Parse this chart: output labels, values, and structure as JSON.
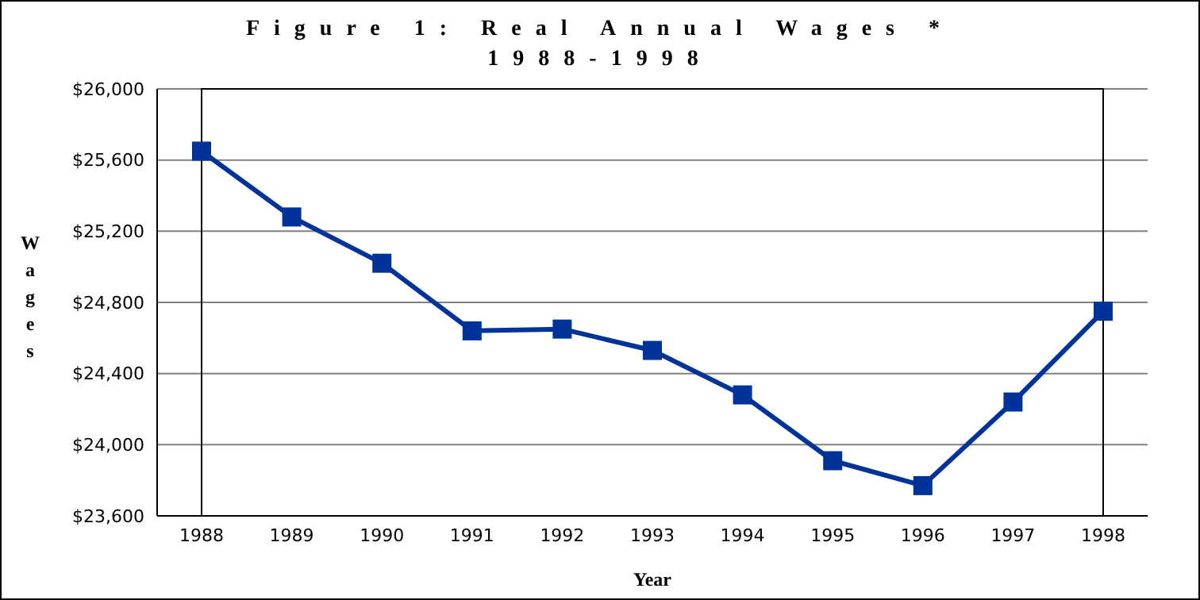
{
  "chart_data": {
    "type": "line",
    "title": "Figure 1: Real Annual Wages *",
    "subtitle": "1988-1998",
    "xlabel": "Year",
    "ylabel": "Wages",
    "categories": [
      "1988",
      "1989",
      "1990",
      "1991",
      "1992",
      "1993",
      "1994",
      "1995",
      "1996",
      "1997",
      "1998"
    ],
    "series": [
      {
        "color": "#003399",
        "values": [
          25650,
          25280,
          25020,
          24640,
          24650,
          24530,
          24280,
          23910,
          23770,
          24240,
          24750
        ]
      }
    ],
    "ylim": [
      23600,
      26000
    ],
    "yticks": [
      {
        "value": 23600,
        "label": "$23,600"
      },
      {
        "value": 24000,
        "label": "$24,000"
      },
      {
        "value": 24400,
        "label": "$24,400"
      },
      {
        "value": 24800,
        "label": "$24,800"
      },
      {
        "value": 25200,
        "label": "$25,200"
      },
      {
        "value": 25600,
        "label": "$25,600"
      },
      {
        "value": 26000,
        "label": "$26,000"
      }
    ],
    "grid": "y",
    "legend": false,
    "marker": "square",
    "line_style": "solid"
  }
}
